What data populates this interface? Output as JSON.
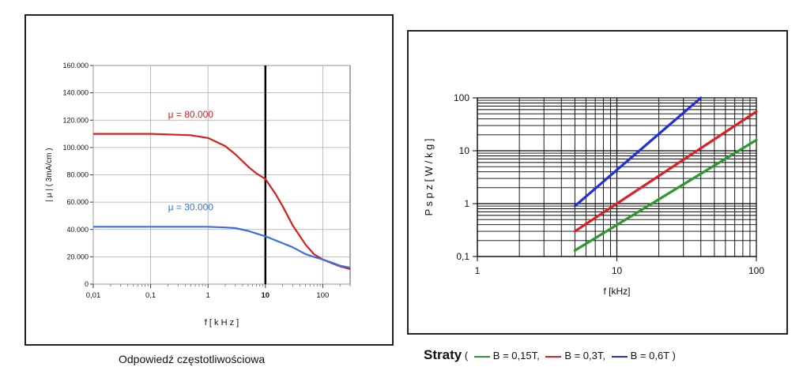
{
  "chart_data": [
    {
      "type": "line",
      "title": "",
      "xlabel": "f  [ k H z ]",
      "ylabel": "| μ |  ( 3mA/cm )",
      "x_scale": "log",
      "xlim": [
        0.01,
        300
      ],
      "ylim": [
        0,
        160000
      ],
      "x_ticks": [
        {
          "value": 0.01,
          "label": "0,01"
        },
        {
          "value": 0.1,
          "label": "0,1"
        },
        {
          "value": 1,
          "label": "1"
        },
        {
          "value": 10,
          "label": "10"
        },
        {
          "value": 100,
          "label": "100"
        }
      ],
      "y_ticks": [
        {
          "value": 0,
          "label": "0"
        },
        {
          "value": 20000,
          "label": "20.000"
        },
        {
          "value": 40000,
          "label": "40.000"
        },
        {
          "value": 60000,
          "label": "60.000"
        },
        {
          "value": 80000,
          "label": "80.000"
        },
        {
          "value": 100000,
          "label": "100.000"
        },
        {
          "value": 120000,
          "label": "120.000"
        },
        {
          "value": 140000,
          "label": "140.000"
        },
        {
          "value": 160000,
          "label": "160.000"
        }
      ],
      "grid": true,
      "highlight_x": 10,
      "series": [
        {
          "name": "μ = 80.000",
          "color": "#d62020",
          "label_at": {
            "x": 0.5,
            "y": 122000
          },
          "points": [
            [
              0.01,
              110000
            ],
            [
              0.1,
              110000
            ],
            [
              0.5,
              109000
            ],
            [
              1,
              107000
            ],
            [
              2,
              101000
            ],
            [
              3,
              95000
            ],
            [
              5,
              86000
            ],
            [
              7,
              81000
            ],
            [
              10,
              77000
            ],
            [
              15,
              66000
            ],
            [
              20,
              57000
            ],
            [
              30,
              43000
            ],
            [
              50,
              29000
            ],
            [
              70,
              22000
            ],
            [
              100,
              18000
            ],
            [
              150,
              15000
            ],
            [
              200,
              13000
            ],
            [
              300,
              11000
            ]
          ]
        },
        {
          "name": "μ = 30.000",
          "color": "#3a6fe0",
          "label_at": {
            "x": 0.5,
            "y": 54000
          },
          "points": [
            [
              0.01,
              42000
            ],
            [
              0.1,
              42000
            ],
            [
              0.5,
              42000
            ],
            [
              1,
              42000
            ],
            [
              2,
              41500
            ],
            [
              3,
              41000
            ],
            [
              5,
              39000
            ],
            [
              7,
              37000
            ],
            [
              10,
              35000
            ],
            [
              20,
              30000
            ],
            [
              30,
              27000
            ],
            [
              50,
              22000
            ],
            [
              70,
              20000
            ],
            [
              100,
              18000
            ],
            [
              150,
              15500
            ],
            [
              200,
              13500
            ],
            [
              300,
              12000
            ]
          ]
        }
      ]
    },
    {
      "type": "line",
      "title": "",
      "xlabel": "f [kHz]",
      "ylabel": "P s p z  [ W / k g ]",
      "x_scale": "log",
      "y_scale": "log",
      "xlim": [
        1,
        100
      ],
      "ylim": [
        0.1,
        100
      ],
      "x_ticks": [
        {
          "value": 1,
          "label": "1"
        },
        {
          "value": 10,
          "label": "10"
        },
        {
          "value": 100,
          "label": "100"
        }
      ],
      "y_ticks": [
        {
          "value": 0.1,
          "label": "0,1"
        },
        {
          "value": 1,
          "label": "1"
        },
        {
          "value": 10,
          "label": "10"
        },
        {
          "value": 100,
          "label": "100"
        }
      ],
      "grid": true,
      "series": [
        {
          "name": "B = 0,15T,",
          "color": "#2a9a2a",
          "points": [
            [
              5,
              0.13
            ],
            [
              100,
              16
            ]
          ]
        },
        {
          "name": "B = 0,3T,",
          "color": "#e02020",
          "points": [
            [
              5,
              0.3
            ],
            [
              100,
              55
            ]
          ]
        },
        {
          "name": "B = 0,6T",
          "color": "#2030e0",
          "points": [
            [
              5,
              0.9
            ],
            [
              40,
              100
            ]
          ]
        }
      ]
    }
  ],
  "captions": {
    "left": "Odpowiedź częstotliwościowa",
    "right_title": "Straty",
    "right_open": "(",
    "right_close": ")",
    "legend": [
      {
        "label": "B = 0,15T,",
        "color": "#2a9a2a"
      },
      {
        "label": "B = 0,3T,",
        "color": "#e02020"
      },
      {
        "label": "B = 0,6T",
        "color": "#2030e0"
      }
    ]
  }
}
